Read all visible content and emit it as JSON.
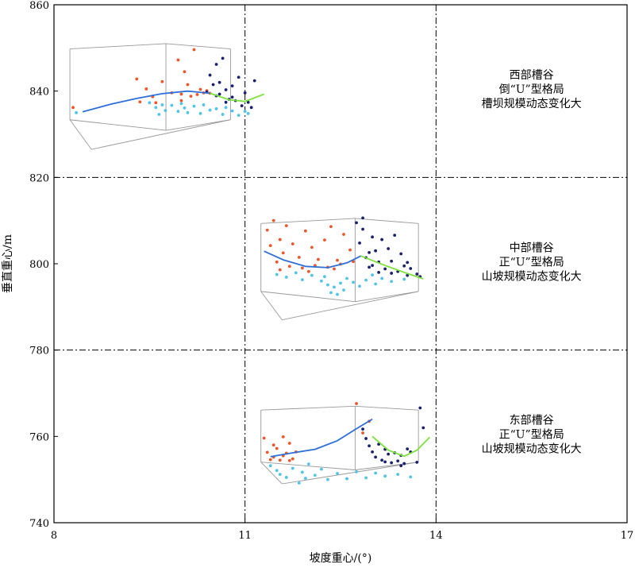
{
  "chart_data": {
    "type": "scatter",
    "title": "",
    "xlabel": "坡度重心/(°)",
    "ylabel": "垂直重心/m",
    "xlim": [
      8,
      17
    ],
    "ylim": [
      740,
      860
    ],
    "xticks": [
      8,
      11,
      14,
      17
    ],
    "yticks": [
      740,
      760,
      780,
      800,
      820,
      840,
      860
    ],
    "grid_lines_x": [
      11,
      14
    ],
    "grid_lines_y": [
      780,
      820
    ],
    "grid_style": "dash-dot",
    "series_colors": {
      "red_points": "#f0552a",
      "navy_points": "#1a2070",
      "cyan_points": "#4fc3e8",
      "blue_curve": "#2d6fd6",
      "green_curve": "#7de23a",
      "box_frame": "#999999"
    },
    "panels": [
      {
        "id": "west",
        "lines": [
          "西部槽谷",
          "倒“U”型格局",
          "槽坝规模动态变化大"
        ],
        "inset_box": {
          "x0": 8.25,
          "x1": 10.85,
          "y0": 826.5,
          "y1": 851
        },
        "red_points": [
          [
            8.3,
            836.2
          ],
          [
            9.3,
            842.8
          ],
          [
            9.45,
            840.5
          ],
          [
            9.55,
            838.7
          ],
          [
            9.7,
            842.2
          ],
          [
            9.85,
            839.6
          ],
          [
            9.95,
            847.2
          ],
          [
            10.0,
            839.3
          ],
          [
            10.05,
            844.5
          ],
          [
            10.1,
            841.5
          ],
          [
            10.15,
            838.8
          ],
          [
            10.2,
            849.6
          ],
          [
            10.25,
            839.2
          ],
          [
            10.3,
            840.4
          ],
          [
            10.35,
            839.6
          ],
          [
            10.4,
            840.1
          ],
          [
            10.45,
            839.5
          ],
          [
            9.35,
            837.5
          ],
          [
            9.6,
            837.3
          ],
          [
            10.0,
            837.8
          ]
        ],
        "navy_points": [
          [
            10.4,
            839.8
          ],
          [
            10.45,
            843.7
          ],
          [
            10.5,
            841.5
          ],
          [
            10.55,
            838.9
          ],
          [
            10.6,
            842.0
          ],
          [
            10.65,
            847.6
          ],
          [
            10.7,
            840.3
          ],
          [
            10.75,
            838.1
          ],
          [
            10.8,
            841.2
          ],
          [
            10.85,
            837.8
          ],
          [
            10.9,
            843.2
          ],
          [
            10.95,
            836.6
          ],
          [
            11.0,
            839.6
          ],
          [
            11.05,
            837.4
          ],
          [
            11.1,
            836.2
          ],
          [
            11.15,
            842.4
          ],
          [
            10.55,
            846.2
          ],
          [
            10.6,
            839.3
          ],
          [
            10.7,
            837.4
          ],
          [
            10.8,
            838.6
          ]
        ],
        "cyan_points": [
          [
            8.35,
            835.0
          ],
          [
            9.5,
            837.3
          ],
          [
            9.6,
            836.2
          ],
          [
            9.65,
            834.6
          ],
          [
            9.7,
            836.8
          ],
          [
            9.75,
            835.5
          ],
          [
            9.85,
            836.7
          ],
          [
            9.95,
            835.3
          ],
          [
            10.0,
            837.1
          ],
          [
            10.05,
            836.1
          ],
          [
            10.1,
            835.0
          ],
          [
            10.2,
            836.5
          ],
          [
            10.3,
            834.8
          ],
          [
            10.45,
            835.6
          ],
          [
            10.55,
            835.9
          ],
          [
            10.65,
            834.6
          ],
          [
            10.7,
            836.2
          ],
          [
            10.8,
            835.4
          ],
          [
            10.9,
            834.4
          ],
          [
            11.0,
            835.3
          ],
          [
            11.05,
            834.8
          ],
          [
            10.35,
            836.8
          ]
        ],
        "blue_curve": [
          [
            8.45,
            835.2
          ],
          [
            8.9,
            837.0
          ],
          [
            9.3,
            838.3
          ],
          [
            9.7,
            839.4
          ],
          [
            10.1,
            840.0
          ],
          [
            10.45,
            839.5
          ]
        ],
        "green_curve": [
          [
            10.45,
            839.5
          ],
          [
            10.75,
            838.0
          ],
          [
            11.0,
            837.6
          ],
          [
            11.3,
            839.3
          ]
        ]
      },
      {
        "id": "middle",
        "lines": [
          "中部槽谷",
          "正“U”型格局",
          "山坡规模动态变化大"
        ],
        "inset_box": {
          "x0": 11.25,
          "x1": 13.8,
          "y0": 787,
          "y1": 810.5
        },
        "red_points": [
          [
            11.35,
            807.8
          ],
          [
            11.4,
            804.2
          ],
          [
            11.45,
            810.0
          ],
          [
            11.5,
            800.4
          ],
          [
            11.55,
            805.6
          ],
          [
            11.6,
            802.5
          ],
          [
            11.65,
            808.8
          ],
          [
            11.75,
            804.6
          ],
          [
            11.85,
            801.5
          ],
          [
            11.95,
            807.6
          ],
          [
            12.05,
            803.8
          ],
          [
            12.15,
            801.0
          ],
          [
            12.25,
            805.5
          ],
          [
            12.35,
            808.6
          ],
          [
            12.45,
            800.8
          ],
          [
            12.55,
            806.8
          ],
          [
            12.65,
            803.2
          ],
          [
            11.7,
            799.4
          ],
          [
            11.9,
            799.0
          ],
          [
            12.1,
            799.6
          ],
          [
            12.3,
            799.2
          ],
          [
            12.5,
            799.9
          ],
          [
            12.7,
            800.5
          ],
          [
            11.55,
            798.6
          ],
          [
            12.0,
            798.2
          ],
          [
            12.4,
            798.8
          ]
        ],
        "navy_points": [
          [
            12.75,
            809.5
          ],
          [
            12.8,
            804.8
          ],
          [
            12.85,
            808.0
          ],
          [
            12.9,
            801.4
          ],
          [
            12.95,
            799.2
          ],
          [
            13.0,
            806.2
          ],
          [
            13.05,
            803.0
          ],
          [
            13.1,
            800.4
          ],
          [
            13.15,
            805.6
          ],
          [
            13.2,
            798.8
          ],
          [
            13.25,
            803.5
          ],
          [
            13.3,
            800.6
          ],
          [
            13.35,
            806.6
          ],
          [
            13.4,
            798.2
          ],
          [
            13.45,
            802.3
          ],
          [
            13.5,
            799.5
          ],
          [
            13.55,
            797.3
          ],
          [
            13.6,
            798.9
          ],
          [
            13.7,
            797.6
          ],
          [
            13.75,
            797.0
          ],
          [
            12.85,
            810.6
          ],
          [
            13.1,
            798.0
          ],
          [
            13.3,
            797.8
          ],
          [
            13.55,
            800.3
          ],
          [
            13.0,
            799.6
          ],
          [
            12.95,
            802.6
          ]
        ],
        "cyan_points": [
          [
            11.5,
            797.5
          ],
          [
            11.65,
            796.9
          ],
          [
            11.8,
            797.9
          ],
          [
            11.9,
            796.3
          ],
          [
            12.05,
            797.3
          ],
          [
            12.2,
            796.0
          ],
          [
            12.3,
            795.1
          ],
          [
            12.35,
            793.3
          ],
          [
            12.4,
            794.6
          ],
          [
            12.45,
            792.9
          ],
          [
            12.5,
            795.5
          ],
          [
            12.55,
            793.9
          ],
          [
            12.6,
            796.6
          ],
          [
            12.7,
            795.7
          ],
          [
            12.8,
            794.8
          ],
          [
            12.9,
            796.2
          ],
          [
            13.0,
            797.4
          ],
          [
            13.05,
            795.3
          ],
          [
            13.15,
            796.6
          ],
          [
            13.3,
            795.9
          ],
          [
            13.5,
            796.4
          ],
          [
            12.25,
            797.0
          ]
        ],
        "blue_curve": [
          [
            11.3,
            802.9
          ],
          [
            11.6,
            800.9
          ],
          [
            11.95,
            799.4
          ],
          [
            12.3,
            799.1
          ],
          [
            12.6,
            800.2
          ],
          [
            12.82,
            801.8
          ]
        ],
        "green_curve": [
          [
            12.82,
            801.8
          ],
          [
            13.2,
            799.6
          ],
          [
            13.5,
            798.0
          ],
          [
            13.8,
            796.5
          ]
        ]
      },
      {
        "id": "east",
        "lines": [
          "东部槽谷",
          "正“U”型格局",
          "山坡规模动态变化大"
        ],
        "inset_box": {
          "x0": 11.25,
          "x1": 13.8,
          "y0": 749,
          "y1": 767
        },
        "red_points": [
          [
            11.3,
            759.6
          ],
          [
            11.35,
            756.3
          ],
          [
            11.4,
            754.6
          ],
          [
            11.45,
            755.2
          ],
          [
            11.5,
            757.2
          ],
          [
            11.55,
            754.5
          ],
          [
            11.6,
            759.9
          ],
          [
            11.65,
            756.1
          ],
          [
            11.7,
            758.4
          ],
          [
            11.75,
            754.8
          ],
          [
            11.8,
            756.4
          ],
          [
            12.75,
            767.6
          ],
          [
            12.85,
            760.8
          ],
          [
            12.95,
            763.5
          ],
          [
            11.45,
            758.0
          ],
          [
            11.6,
            755.5
          ],
          [
            11.7,
            754.4
          ]
        ],
        "navy_points": [
          [
            12.85,
            761.7
          ],
          [
            12.9,
            759.5
          ],
          [
            12.95,
            757.8
          ],
          [
            13.0,
            756.4
          ],
          [
            13.05,
            755.2
          ],
          [
            13.1,
            758.2
          ],
          [
            13.15,
            754.5
          ],
          [
            13.2,
            757.0
          ],
          [
            13.25,
            755.9
          ],
          [
            13.3,
            753.9
          ],
          [
            13.35,
            756.2
          ],
          [
            13.4,
            754.3
          ],
          [
            13.45,
            755.6
          ],
          [
            13.5,
            753.7
          ],
          [
            13.55,
            757.1
          ],
          [
            13.6,
            756.4
          ],
          [
            13.7,
            754.0
          ],
          [
            13.75,
            766.6
          ],
          [
            13.8,
            762.0
          ],
          [
            13.45,
            753.2
          ],
          [
            13.2,
            754.1
          ]
        ],
        "cyan_points": [
          [
            11.4,
            753.2
          ],
          [
            11.5,
            752.1
          ],
          [
            11.55,
            751.2
          ],
          [
            11.65,
            750.5
          ],
          [
            11.75,
            752.6
          ],
          [
            11.85,
            749.2
          ],
          [
            11.9,
            751.7
          ],
          [
            11.95,
            750.3
          ],
          [
            12.0,
            753.6
          ],
          [
            12.1,
            751.0
          ],
          [
            12.2,
            752.4
          ],
          [
            12.3,
            750.0
          ],
          [
            12.45,
            751.4
          ],
          [
            12.6,
            750.2
          ],
          [
            12.75,
            751.8
          ],
          [
            12.9,
            750.4
          ],
          [
            13.05,
            751.5
          ],
          [
            13.2,
            750.8
          ],
          [
            13.4,
            751.2
          ],
          [
            13.6,
            750.6
          ]
        ],
        "blue_curve": [
          [
            11.4,
            755.3
          ],
          [
            11.75,
            756.2
          ],
          [
            12.1,
            757.0
          ],
          [
            12.45,
            759.0
          ],
          [
            12.75,
            761.8
          ],
          [
            13.0,
            764.0
          ]
        ],
        "green_curve": [
          [
            13.0,
            760.0
          ],
          [
            13.25,
            756.8
          ],
          [
            13.5,
            755.4
          ],
          [
            13.7,
            756.8
          ],
          [
            13.9,
            759.8
          ]
        ]
      }
    ]
  }
}
